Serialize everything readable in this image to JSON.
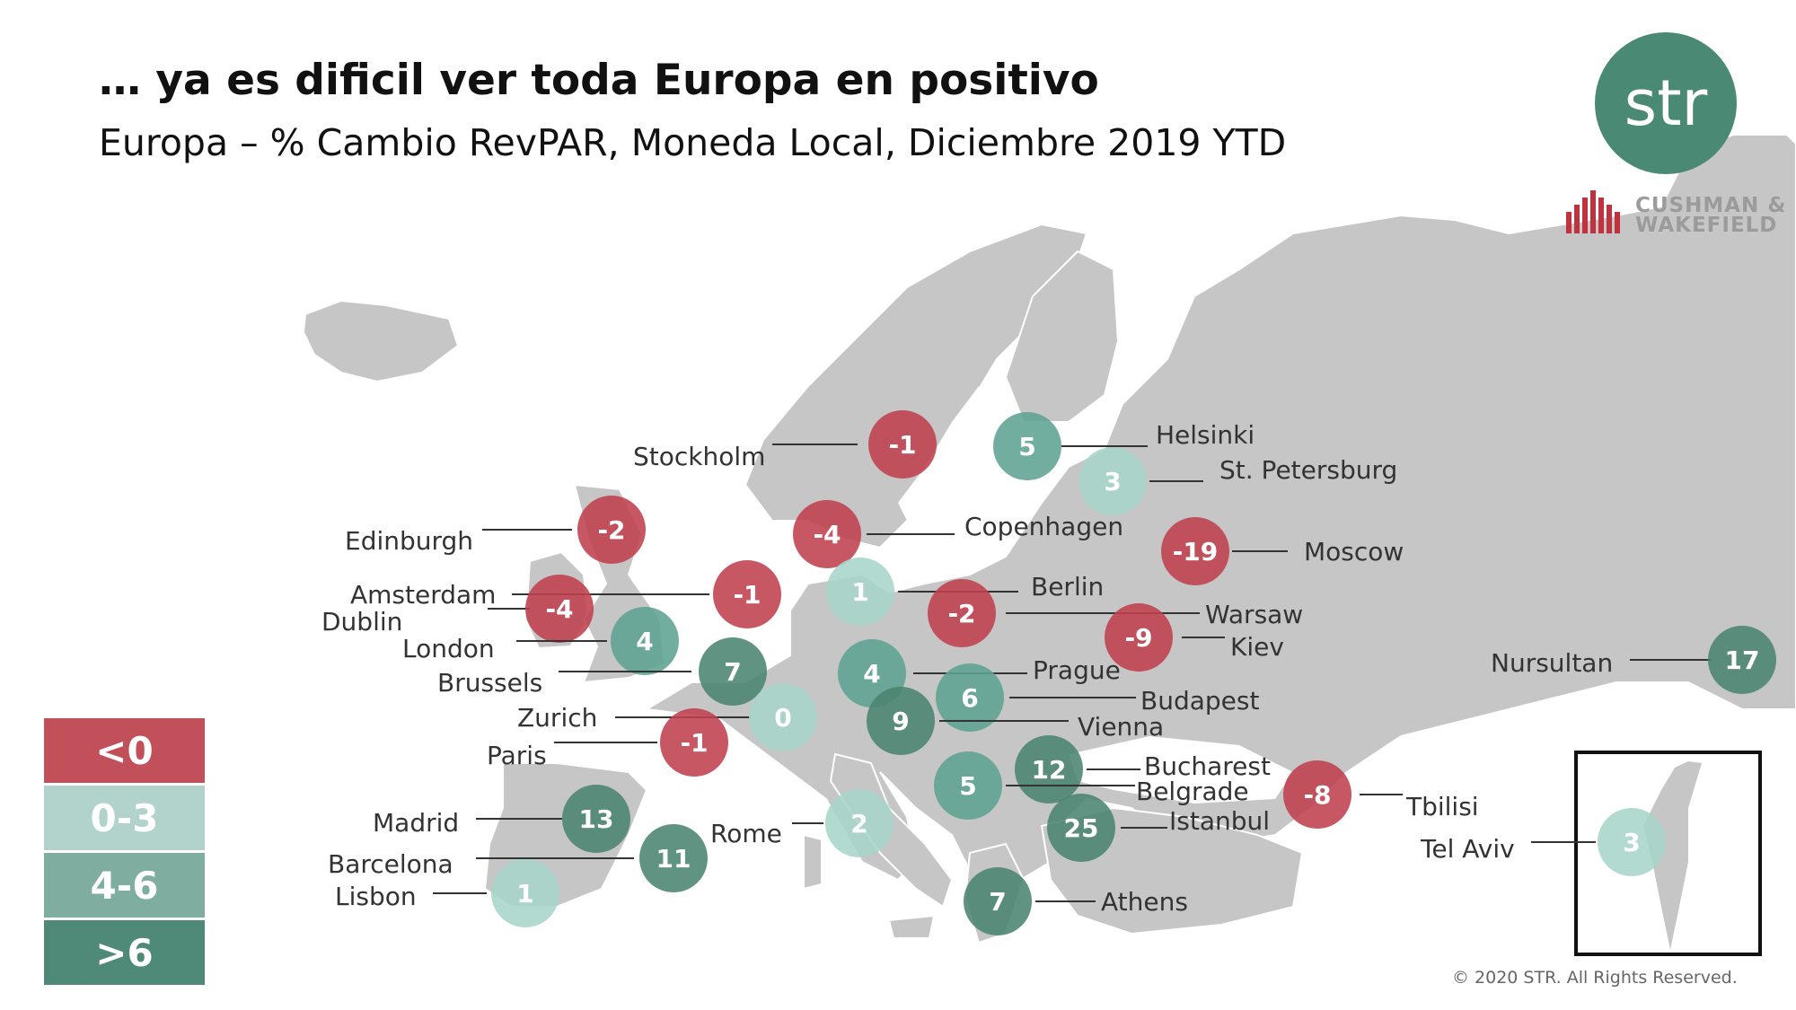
{
  "header": {
    "title": "… ya es dificil ver toda Europa en positivo",
    "subtitle": "Europa – % Cambio RevPAR, Moneda Local, Diciembre 2019 YTD"
  },
  "logos": {
    "str": "str",
    "cw_line1": "CUSHMAN &",
    "cw_line2": "WAKEFIELD"
  },
  "legend": [
    {
      "label": "<0",
      "color": "#c1505a"
    },
    {
      "label": "0-3",
      "color": "#b2d3cb"
    },
    {
      "label": "4-6",
      "color": "#7fad9f"
    },
    {
      "label": ">6",
      "color": "#4e8a77"
    }
  ],
  "categories": {
    "neg": {
      "fill": "#c0404f",
      "text": "#ffffff"
    },
    "low": {
      "fill": "#a8d5cb",
      "text": "#ffffff"
    },
    "mid": {
      "fill": "#5fa392",
      "text": "#ffffff"
    },
    "high": {
      "fill": "#4a8470",
      "text": "#ffffff"
    }
  },
  "cities": [
    {
      "name": "Stockholm",
      "value": "-1",
      "cat": "neg"
    },
    {
      "name": "Helsinki",
      "value": "5",
      "cat": "mid"
    },
    {
      "name": "St. Petersburg",
      "value": "3",
      "cat": "low"
    },
    {
      "name": "Edinburgh",
      "value": "-2",
      "cat": "neg"
    },
    {
      "name": "Copenhagen",
      "value": "-4",
      "cat": "neg"
    },
    {
      "name": "Moscow",
      "value": "-19",
      "cat": "neg"
    },
    {
      "name": "Amsterdam",
      "value": "-1",
      "cat": "neg"
    },
    {
      "name": "Berlin",
      "value": "1",
      "cat": "low"
    },
    {
      "name": "Dublin",
      "value": "-4",
      "cat": "neg"
    },
    {
      "name": "Warsaw",
      "value": "-2",
      "cat": "neg"
    },
    {
      "name": "London",
      "value": "4",
      "cat": "mid"
    },
    {
      "name": "Kiev",
      "value": "-9",
      "cat": "neg"
    },
    {
      "name": "Nursultan",
      "value": "17",
      "cat": "high"
    },
    {
      "name": "Brussels",
      "value": "7",
      "cat": "high"
    },
    {
      "name": "Prague",
      "value": "4",
      "cat": "mid"
    },
    {
      "name": "Budapest",
      "value": "6",
      "cat": "mid"
    },
    {
      "name": "Zurich",
      "value": "0",
      "cat": "low"
    },
    {
      "name": "Vienna",
      "value": "9",
      "cat": "high"
    },
    {
      "name": "Paris",
      "value": "-1",
      "cat": "neg"
    },
    {
      "name": "Bucharest",
      "value": "12",
      "cat": "high"
    },
    {
      "name": "Belgrade",
      "value": "5",
      "cat": "mid"
    },
    {
      "name": "Madrid",
      "value": "13",
      "cat": "high"
    },
    {
      "name": "Tbilisi",
      "value": "-8",
      "cat": "neg"
    },
    {
      "name": "Istanbul",
      "value": "25",
      "cat": "high"
    },
    {
      "name": "Rome",
      "value": "2",
      "cat": "low"
    },
    {
      "name": "Barcelona",
      "value": "11",
      "cat": "high"
    },
    {
      "name": "Tel Aviv",
      "value": "3",
      "cat": "low"
    },
    {
      "name": "Lisbon",
      "value": "1",
      "cat": "low"
    },
    {
      "name": "Athens",
      "value": "7",
      "cat": "high"
    }
  ],
  "footer": {
    "copyright": "© 2020 STR. All Rights Reserved."
  }
}
